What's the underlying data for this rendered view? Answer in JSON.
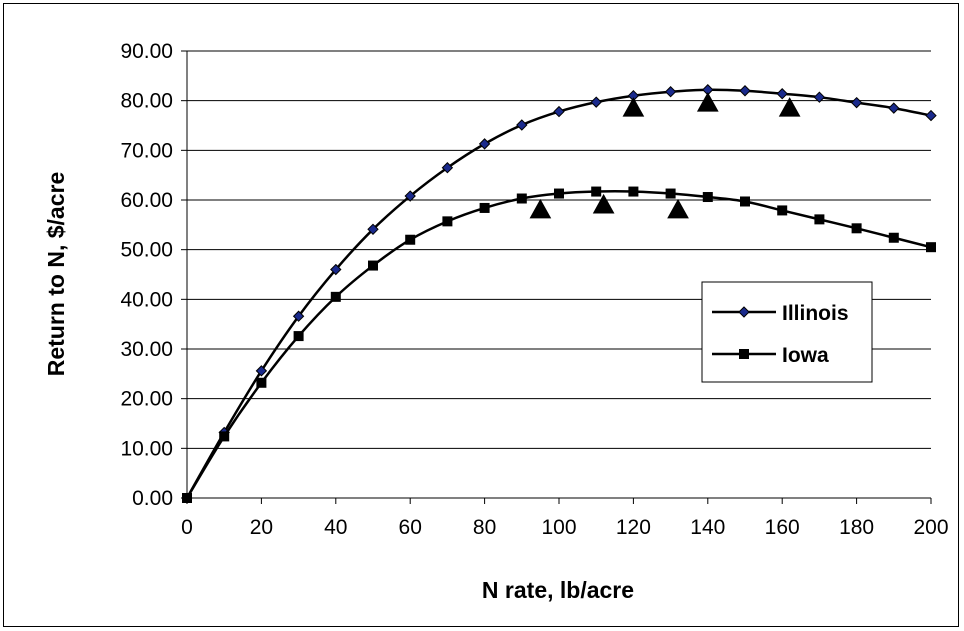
{
  "chart_data": {
    "type": "line",
    "title": "",
    "xlabel": "N rate, lb/acre",
    "ylabel": "Return to N, $/acre",
    "xlim": [
      0,
      200
    ],
    "ylim": [
      0,
      90
    ],
    "x_ticks": [
      0,
      20,
      40,
      60,
      80,
      100,
      120,
      140,
      160,
      180,
      200
    ],
    "x_tick_labels": [
      "0",
      "20",
      "40",
      "60",
      "80",
      "100",
      "120",
      "140",
      "160",
      "180",
      "200"
    ],
    "y_ticks": [
      0,
      10,
      20,
      30,
      40,
      50,
      60,
      70,
      80,
      90
    ],
    "y_tick_labels": [
      "0.00",
      "10.00",
      "20.00",
      "30.00",
      "40.00",
      "50.00",
      "60.00",
      "70.00",
      "80.00",
      "90.00"
    ],
    "grid": "horizontal",
    "legend_position": "right",
    "series": [
      {
        "name": "Illinois",
        "marker": "diamond",
        "color": "#000000",
        "marker_fill": "#1a2a8c",
        "x": [
          0,
          10,
          20,
          30,
          40,
          50,
          60,
          70,
          80,
          90,
          100,
          110,
          120,
          130,
          140,
          150,
          160,
          170,
          180,
          190,
          200
        ],
        "y": [
          0.0,
          13.2,
          25.6,
          36.6,
          46.0,
          54.1,
          60.8,
          66.5,
          71.3,
          75.1,
          77.8,
          79.7,
          81.0,
          81.8,
          82.2,
          82.0,
          81.4,
          80.7,
          79.6,
          78.5,
          77.0
        ]
      },
      {
        "name": "Iowa",
        "marker": "square",
        "color": "#000000",
        "marker_fill": "#000000",
        "x": [
          0,
          10,
          20,
          30,
          40,
          50,
          60,
          70,
          80,
          90,
          100,
          110,
          120,
          130,
          140,
          150,
          160,
          170,
          180,
          190,
          200
        ],
        "y": [
          0.0,
          12.4,
          23.2,
          32.6,
          40.5,
          46.8,
          52.0,
          55.7,
          58.4,
          60.3,
          61.3,
          61.7,
          61.7,
          61.3,
          60.6,
          59.7,
          57.9,
          56.1,
          54.3,
          52.4,
          50.5
        ]
      },
      {
        "name": "",
        "marker": "triangle",
        "color": "#000000",
        "x": [
          95,
          112,
          120,
          132,
          140,
          162
        ],
        "y": [
          58.0,
          59.0,
          78.5,
          58.0,
          79.5,
          78.5
        ]
      }
    ]
  }
}
